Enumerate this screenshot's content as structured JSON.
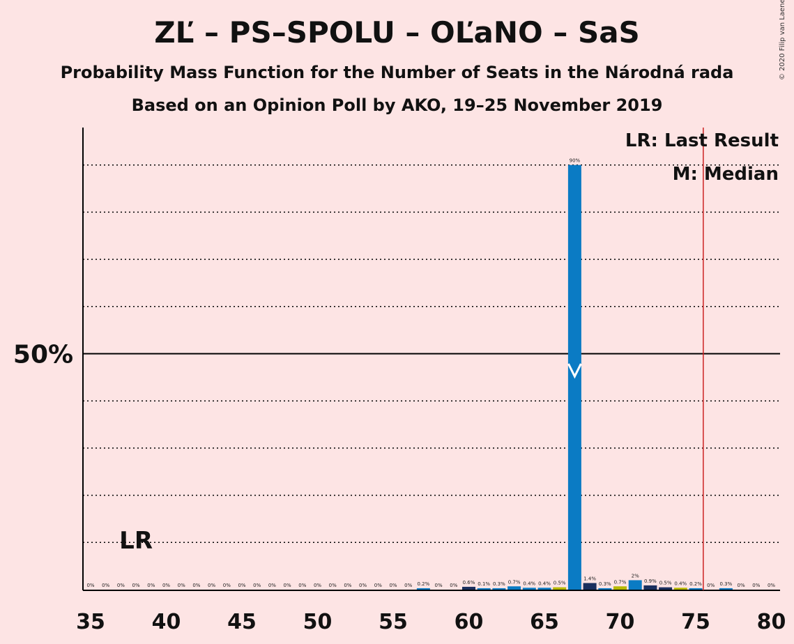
{
  "header": {
    "title": "ZĽ – PS–SPOLU – OĽaNO – SaS",
    "subtitle": "Probability Mass Function for the Number of Seats in the Národná rada",
    "subtitle2": "Based on an Opinion Poll by AKO, 19–25 November 2019",
    "copyright": "© 2020 Filip van Laenen"
  },
  "chart_data": {
    "type": "bar",
    "x": [
      35,
      36,
      37,
      38,
      39,
      40,
      41,
      42,
      43,
      44,
      45,
      46,
      47,
      48,
      49,
      50,
      51,
      52,
      53,
      54,
      55,
      56,
      57,
      58,
      59,
      60,
      61,
      62,
      63,
      64,
      65,
      66,
      67,
      68,
      69,
      70,
      71,
      72,
      73,
      74,
      75,
      76,
      77,
      78,
      79,
      80
    ],
    "values": [
      0,
      0,
      0,
      0,
      0,
      0,
      0,
      0,
      0,
      0,
      0,
      0,
      0,
      0,
      0,
      0,
      0,
      0,
      0,
      0,
      0,
      0,
      0.2,
      0,
      0,
      0.6,
      0.1,
      0.3,
      0.7,
      0.4,
      0.4,
      0.5,
      90,
      1.4,
      0.3,
      0.7,
      2,
      0.9,
      0.5,
      0.4,
      0.2,
      0,
      0.3,
      0,
      0,
      0
    ],
    "labels": [
      "0%",
      "0%",
      "0%",
      "0%",
      "0%",
      "0%",
      "0%",
      "0%",
      "0%",
      "0%",
      "0%",
      "0%",
      "0%",
      "0%",
      "0%",
      "0%",
      "0%",
      "0%",
      "0%",
      "0%",
      "0%",
      "0%",
      "0.2%",
      "0%",
      "0%",
      "0.6%",
      "0.1%",
      "0.3%",
      "0.7%",
      "0.4%",
      "0.4%",
      "0.5%",
      "90%",
      "1.4%",
      "0.3%",
      "0.7%",
      "2%",
      "0.9%",
      "0.5%",
      "0.4%",
      "0.2%",
      "0%",
      "0.3%",
      "0%",
      "0%",
      "0%"
    ],
    "colors": {
      "primary": "#0A7BC4",
      "dark": "#1A2F5E",
      "olive": "#B5B800",
      "last_result_line": "#CC2222",
      "background": "#FDE4E4"
    },
    "xlim": [
      35,
      80
    ],
    "ylim": [
      0,
      100
    ],
    "xticks": [
      "35",
      "40",
      "45",
      "50",
      "55",
      "60",
      "65",
      "70",
      "75",
      "80"
    ],
    "y_gridlines": [
      10,
      20,
      30,
      40,
      60,
      70,
      80,
      90
    ],
    "y_solid_line": 50,
    "ytick_label": "50%",
    "last_result": {
      "seat": 38,
      "label": "LR",
      "line_at": 75.5
    },
    "median": {
      "seat": 67
    },
    "legend": {
      "lr": "LR: Last Result",
      "m": "M: Median"
    }
  }
}
